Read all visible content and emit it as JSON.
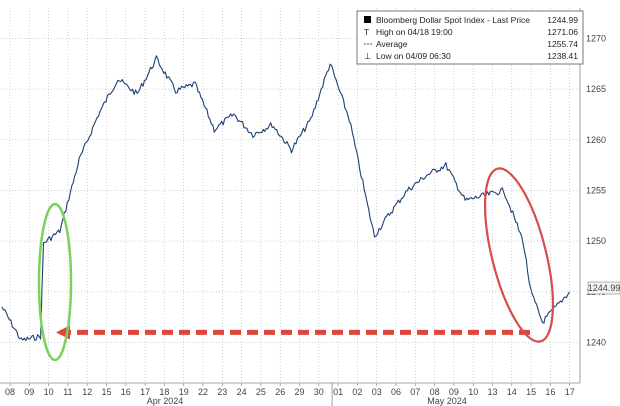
{
  "chart_data": {
    "type": "line",
    "title": "",
    "xlabel": "",
    "ylabel": "",
    "ylim": [
      1236,
      1273
    ],
    "y_ticks": [
      1240,
      1245,
      1250,
      1255,
      1260,
      1265,
      1270
    ],
    "grid": "on",
    "x_day_labels": [
      "08",
      "09",
      "10",
      "11",
      "12",
      "15",
      "16",
      "17",
      "18",
      "19",
      "22",
      "23",
      "24",
      "25",
      "26",
      "29",
      "30",
      "01",
      "02",
      "03",
      "06",
      "07",
      "08",
      "09",
      "10",
      "13",
      "14",
      "15",
      "16",
      "17"
    ],
    "x_month_labels": [
      "Apr 2024",
      "May 2024"
    ],
    "legend": {
      "placement": "top-right",
      "series_label": "Bloomberg Dollar Spot Index - Last Price",
      "series_value": "1244.99",
      "high_label": "High on 04/18 19:00",
      "high_value": "1271.06",
      "avg_label": "Average",
      "avg_value": "1255.74",
      "low_label": "Low on 04/09 06:30",
      "low_value": "1238.41"
    },
    "last_price_badge": "1244.99",
    "series": [
      {
        "name": "Bloomberg Dollar Spot Index - Last Price",
        "x": [
          "04/08",
          "04/09",
          "04/10",
          "04/10 late",
          "04/11",
          "04/12",
          "04/15",
          "04/16",
          "04/17",
          "04/18",
          "04/19",
          "04/22",
          "04/23",
          "04/24",
          "04/25",
          "04/26",
          "04/29",
          "04/30",
          "05/01",
          "05/02",
          "05/03",
          "05/03 late",
          "05/06",
          "05/07",
          "05/08",
          "05/09",
          "05/10",
          "05/13",
          "05/14",
          "05/15",
          "05/15 late",
          "05/16",
          "05/17"
        ],
        "values": [
          1243.5,
          1240.2,
          1240.6,
          1249.8,
          1251.0,
          1258.0,
          1262.5,
          1266.0,
          1264.5,
          1268.0,
          1264.8,
          1265.5,
          1261.0,
          1262.5,
          1260.5,
          1261.5,
          1259.0,
          1262.0,
          1267.5,
          1262.0,
          1253.0,
          1250.5,
          1252.5,
          1255.0,
          1256.5,
          1257.5,
          1254.0,
          1254.5,
          1255.0,
          1250.0,
          1245.0,
          1242.0,
          1244.99
        ]
      }
    ],
    "annotations": [
      {
        "kind": "ellipse",
        "color": "#7bd25a",
        "around_day": "10"
      },
      {
        "kind": "ellipse",
        "color": "#d94c4c",
        "around_day": "15"
      },
      {
        "kind": "dashed-arrow",
        "color": "#e0453d",
        "level": 1241.0
      }
    ]
  },
  "colors": {
    "line": "#1d3f73",
    "grid": "#b7b7b7",
    "ellipse_green": "#7bd25a",
    "ellipse_red": "#d94c4c",
    "dash_red": "#e0453d",
    "badge_bg": "#f2f2f2"
  }
}
